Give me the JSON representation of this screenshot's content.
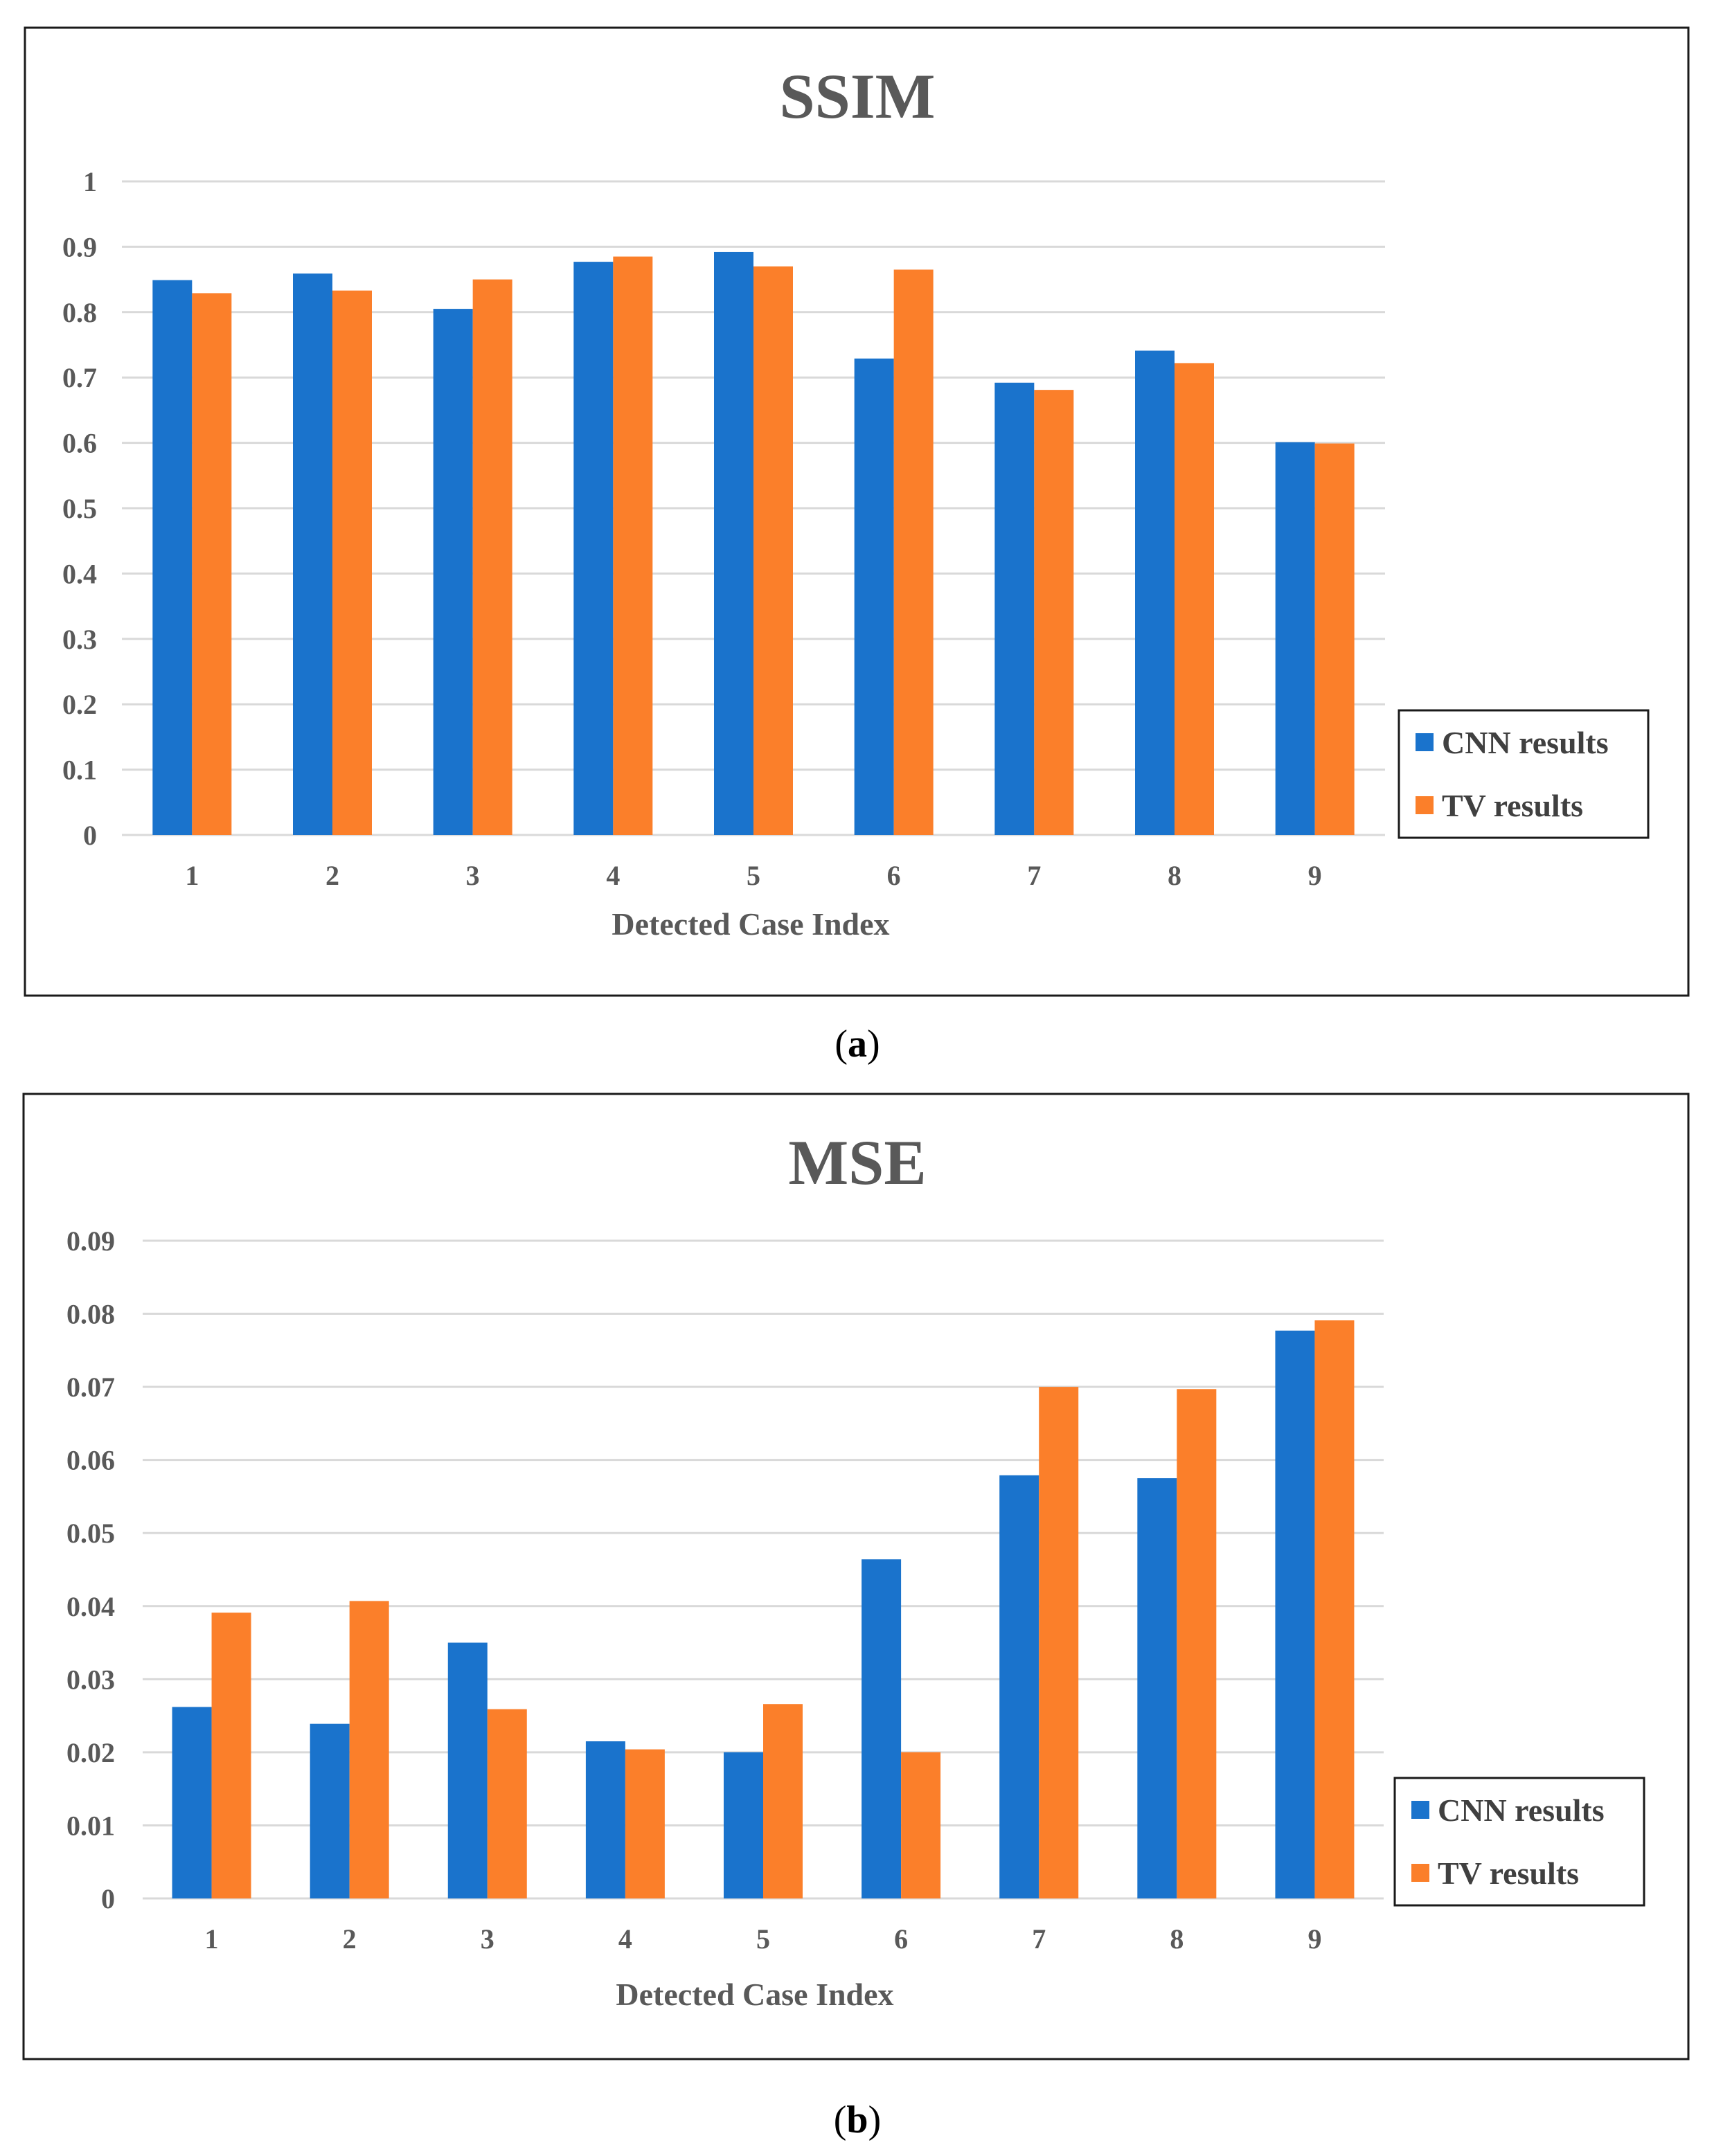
{
  "colors": {
    "cnn": "#1a73cc",
    "tv": "#fb7f2a"
  },
  "panel_labels": [
    {
      "open": "(",
      "letter": "a",
      "close": ")"
    },
    {
      "open": "(",
      "letter": "b",
      "close": ")"
    }
  ],
  "chart_data": [
    {
      "type": "bar",
      "title": "SSIM",
      "xlabel": "Detected Case Index",
      "ylabel": "",
      "categories": [
        "1",
        "2",
        "3",
        "4",
        "5",
        "6",
        "7",
        "8",
        "9"
      ],
      "y_ticks": [
        "0",
        "0.1",
        "0.2",
        "0.3",
        "0.4",
        "0.5",
        "0.6",
        "0.7",
        "0.8",
        "0.9",
        "1"
      ],
      "ylim": [
        0,
        1
      ],
      "grid": true,
      "legend_position": "right",
      "series": [
        {
          "name": "CNN results",
          "color_key": "cnn",
          "values": [
            0.849,
            0.859,
            0.805,
            0.877,
            0.892,
            0.729,
            0.692,
            0.741,
            0.601
          ]
        },
        {
          "name": "TV results",
          "color_key": "tv",
          "values": [
            0.829,
            0.833,
            0.85,
            0.885,
            0.87,
            0.865,
            0.681,
            0.722,
            0.599
          ]
        }
      ]
    },
    {
      "type": "bar",
      "title": "MSE",
      "xlabel": "Detected Case Index",
      "ylabel": "",
      "categories": [
        "1",
        "2",
        "3",
        "4",
        "5",
        "6",
        "7",
        "8",
        "9"
      ],
      "y_ticks": [
        "0",
        "0.01",
        "0.02",
        "0.03",
        "0.04",
        "0.05",
        "0.06",
        "0.07",
        "0.08",
        "0.09"
      ],
      "ylim": [
        0,
        0.09
      ],
      "grid": true,
      "legend_position": "right",
      "series": [
        {
          "name": "CNN results",
          "color_key": "cnn",
          "values": [
            0.0262,
            0.0239,
            0.035,
            0.0215,
            0.02,
            0.0464,
            0.0579,
            0.0575,
            0.0777
          ]
        },
        {
          "name": "TV results",
          "color_key": "tv",
          "values": [
            0.0391,
            0.0407,
            0.0259,
            0.0204,
            0.0266,
            0.02,
            0.07,
            0.0697,
            0.0791
          ]
        }
      ]
    }
  ]
}
